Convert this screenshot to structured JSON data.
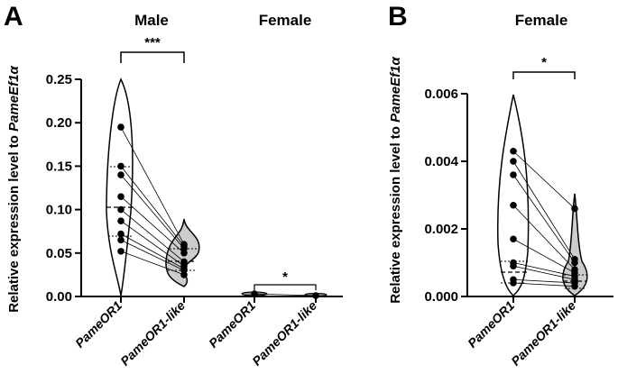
{
  "chart_data": [
    {
      "panel": "A",
      "type": "violin",
      "group_titles": [
        "Male",
        "Female"
      ],
      "ylabel": "Relative expression level to ",
      "ylabel_italic": "PameEf1α",
      "ylim": [
        0,
        0.25
      ],
      "yticks": [
        "0.00",
        "0.05",
        "0.10",
        "0.15",
        "0.20",
        "0.25"
      ],
      "categories": [
        "PameOR1",
        "PameOR1-like",
        "PameOR1",
        "PameOR1-like"
      ],
      "significance": [
        {
          "between": [
            0,
            1
          ],
          "label": "***"
        },
        {
          "between": [
            2,
            3
          ],
          "label": "*"
        }
      ],
      "paired": [
        {
          "x": 0,
          "y": 0.195,
          "x2": 1,
          "y2": 0.06
        },
        {
          "x": 0,
          "y": 0.15,
          "x2": 1,
          "y2": 0.058
        },
        {
          "x": 0,
          "y": 0.14,
          "x2": 1,
          "y2": 0.055
        },
        {
          "x": 0,
          "y": 0.115,
          "x2": 1,
          "y2": 0.05
        },
        {
          "x": 0,
          "y": 0.1,
          "x2": 1,
          "y2": 0.04
        },
        {
          "x": 0,
          "y": 0.087,
          "x2": 1,
          "y2": 0.035
        },
        {
          "x": 0,
          "y": 0.072,
          "x2": 1,
          "y2": 0.032
        },
        {
          "x": 0,
          "y": 0.065,
          "x2": 1,
          "y2": 0.03
        },
        {
          "x": 0,
          "y": 0.052,
          "x2": 1,
          "y2": 0.025
        },
        {
          "x": 2,
          "y": 0.003,
          "x2": 3,
          "y2": 0.001
        }
      ]
    },
    {
      "panel": "B",
      "type": "violin",
      "group_titles": [
        "Female"
      ],
      "ylabel": "Relative expression level to ",
      "ylabel_italic": "PameEf1α",
      "ylim": [
        0,
        0.006
      ],
      "yticks": [
        "0.000",
        "0.002",
        "0.004",
        "0.006"
      ],
      "categories": [
        "PameOR1",
        "PameOR1-like"
      ],
      "significance": [
        {
          "between": [
            0,
            1
          ],
          "label": "*"
        }
      ],
      "paired": [
        {
          "x": 0,
          "y": 0.0043,
          "x2": 1,
          "y2": 0.0026
        },
        {
          "x": 0,
          "y": 0.004,
          "x2": 1,
          "y2": 0.0011
        },
        {
          "x": 0,
          "y": 0.0036,
          "x2": 1,
          "y2": 0.001
        },
        {
          "x": 0,
          "y": 0.0027,
          "x2": 1,
          "y2": 0.0008
        },
        {
          "x": 0,
          "y": 0.0017,
          "x2": 1,
          "y2": 0.0007
        },
        {
          "x": 0,
          "y": 0.001,
          "x2": 1,
          "y2": 0.0006
        },
        {
          "x": 0,
          "y": 0.0009,
          "x2": 1,
          "y2": 0.0005
        },
        {
          "x": 0,
          "y": 0.0005,
          "x2": 1,
          "y2": 0.0004
        },
        {
          "x": 0,
          "y": 0.0004,
          "x2": 1,
          "y2": 0.0003
        }
      ]
    }
  ],
  "panel_labels": [
    "A",
    "B"
  ]
}
